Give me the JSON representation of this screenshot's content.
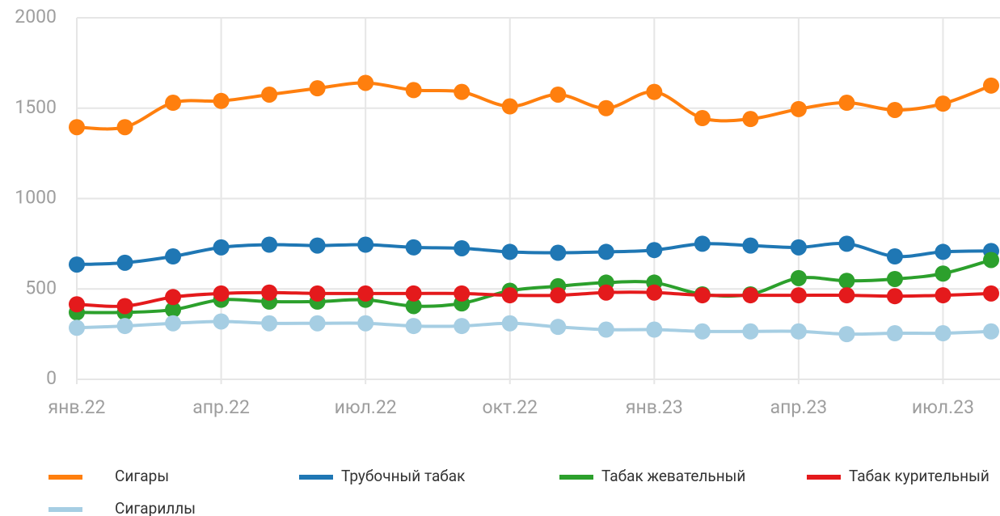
{
  "chart_data": {
    "type": "line",
    "categories": [
      "янв.22",
      null,
      null,
      "апр.22",
      null,
      null,
      "июл.22",
      null,
      null,
      "окт.22",
      null,
      null,
      "янв.23",
      null,
      null,
      "апр.23",
      null,
      null,
      "июл.23",
      null
    ],
    "series": [
      {
        "name": "Сигары",
        "color": "#ff7f0e",
        "values": [
          1395,
          1395,
          1530,
          1540,
          1575,
          1610,
          1640,
          1600,
          1590,
          1510,
          1575,
          1500,
          1590,
          1445,
          1440,
          1495,
          1530,
          1490,
          1525,
          1625
        ]
      },
      {
        "name": "Трубочный табак",
        "color": "#1f77b4",
        "values": [
          635,
          645,
          680,
          730,
          745,
          740,
          745,
          730,
          725,
          705,
          700,
          705,
          715,
          750,
          740,
          730,
          750,
          680,
          705,
          710
        ]
      },
      {
        "name": "Табак жевательный",
        "color": "#2ca02c",
        "values": [
          370,
          370,
          385,
          440,
          430,
          430,
          440,
          405,
          420,
          490,
          515,
          535,
          535,
          470,
          470,
          560,
          545,
          555,
          585,
          660
        ]
      },
      {
        "name": "Табак курительный",
        "color": "#e41a1c",
        "values": [
          415,
          405,
          455,
          475,
          480,
          475,
          475,
          475,
          475,
          465,
          465,
          480,
          480,
          465,
          465,
          465,
          465,
          460,
          465,
          475
        ]
      },
      {
        "name": "Сигариллы",
        "color": "#a6cee3",
        "values": [
          285,
          295,
          310,
          320,
          310,
          310,
          310,
          295,
          295,
          310,
          290,
          275,
          275,
          265,
          265,
          265,
          250,
          255,
          255,
          265
        ]
      }
    ],
    "ylim": [
      0,
      2000
    ],
    "yticks": [
      0,
      500,
      1000,
      1500,
      2000
    ],
    "grid": true,
    "legend": "bottom"
  }
}
